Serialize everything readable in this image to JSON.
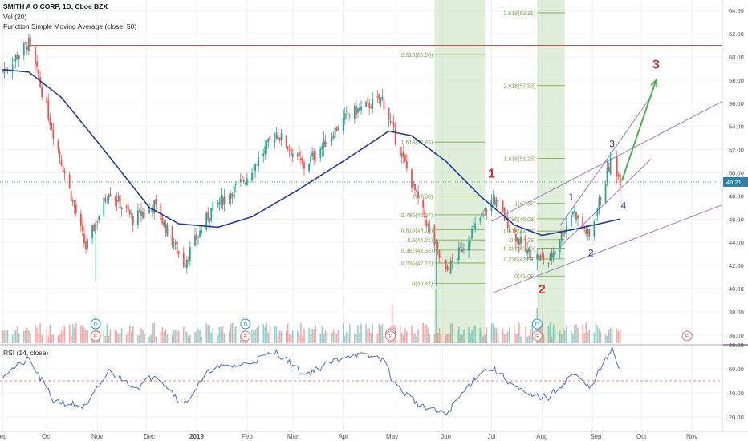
{
  "header": {
    "title": "SMITH A O CORP, 1D, Cboe BZX",
    "vol": "Vol (20)",
    "sma": "Function Simple Moving Average (close, 50)"
  },
  "rsi_header": "RSI (14, close)",
  "price_badge": "49.21",
  "colors": {
    "up": "#26a69a",
    "down": "#ef5350",
    "sma": "#1f3c99",
    "rsi": "#4a6fc9",
    "channel": "#9c7cc5",
    "fib": "#7ba84a",
    "fib_zone": "#b9d9a8",
    "resistance": "#e0463e",
    "wave_blue": "#1f3c99",
    "wave_red": "#d32f2f",
    "arrow": "#4caf50",
    "badge": "#2b7fa8"
  },
  "wave_labels_red": [
    "1",
    "2",
    "3"
  ],
  "wave_labels_blue": [
    "1",
    "2",
    "3",
    "4"
  ],
  "event_markers": [
    {
      "text": "D",
      "color": "#2196f3"
    },
    {
      "text": "E",
      "color": "#e57373"
    },
    {
      "text": "D",
      "color": "#2196f3"
    },
    {
      "text": "E",
      "color": "#e57373"
    },
    {
      "text": "E",
      "color": "#e57373"
    },
    {
      "text": "E",
      "color": "#e57373"
    },
    {
      "text": "D",
      "color": "#2196f3"
    },
    {
      "text": "E",
      "color": "#e57373"
    },
    {
      "text": "E",
      "color": "#e57373"
    }
  ],
  "fib_left": [
    "2.618(60.20)",
    "1.618(52.65)",
    "1(47.98)",
    "0.786(46.37)",
    "0.618(45.10)",
    "0.5(44.21)",
    "0.382(43.33)",
    "0.236(42.22)",
    "0(40.44)"
  ],
  "fib_right": [
    "3.618(63.81)",
    "2.618(57.53)",
    "1.618(51.25)",
    "1(47.37)",
    "0.786(46.03)",
    "0.618(44.97)",
    "0.5(44.23)",
    "0.382(43.49)",
    "0.236(42.57)",
    "0(41.09)"
  ],
  "chart_data": {
    "type": "candlestick",
    "x_labels": [
      "Sep",
      "Oct",
      "Nov",
      "Dec",
      "2019",
      "Feb",
      "Mar",
      "Apr",
      "May",
      "Jun",
      "Jul",
      "Aug",
      "Sep",
      "Oct",
      "Nov"
    ],
    "price_axis": {
      "ticks": [
        "64.00",
        "62.00",
        "60.00",
        "58.00",
        "56.00",
        "54.00",
        "52.00",
        "50.00",
        "48.00",
        "46.00",
        "44.00",
        "42.00",
        "40.00",
        "38.00",
        "36.00"
      ],
      "range": [
        35,
        65
      ]
    },
    "rsi_axis": {
      "ticks": [
        "80.00",
        "60.00",
        "40.00",
        "20.00"
      ],
      "range": [
        12,
        85
      ],
      "midline": 50
    },
    "last_price": 49.21,
    "resistance": 61.0,
    "price_path_anchors": [
      [
        "2018-09-04",
        58.8
      ],
      [
        "2018-09-20",
        61.2
      ],
      [
        "2018-10-03",
        54.5
      ],
      [
        "2018-10-25",
        43.5
      ],
      [
        "2018-11-08",
        48.5
      ],
      [
        "2018-11-23",
        46.0
      ],
      [
        "2018-12-06",
        47.2
      ],
      [
        "2018-12-24",
        42.2
      ],
      [
        "2019-01-10",
        46.8
      ],
      [
        "2019-01-31",
        49.5
      ],
      [
        "2019-02-19",
        53.5
      ],
      [
        "2019-03-08",
        50.5
      ],
      [
        "2019-04-04",
        55.0
      ],
      [
        "2019-04-25",
        56.4
      ],
      [
        "2019-05-03",
        53.0
      ],
      [
        "2019-05-20",
        46.5
      ],
      [
        "2019-06-03",
        41.3
      ],
      [
        "2019-06-24",
        46.0
      ],
      [
        "2019-07-02",
        47.8
      ],
      [
        "2019-07-22",
        43.2
      ],
      [
        "2019-08-05",
        42.3
      ],
      [
        "2019-08-20",
        46.8
      ],
      [
        "2019-08-30",
        44.4
      ],
      [
        "2019-09-13",
        51.5
      ],
      [
        "2019-09-18",
        49.2
      ]
    ],
    "sma50_anchors": [
      [
        "2018-09-04",
        58.9
      ],
      [
        "2018-09-20",
        58.7
      ],
      [
        "2018-10-10",
        56.5
      ],
      [
        "2018-11-05",
        52.0
      ],
      [
        "2018-12-03",
        47.0
      ],
      [
        "2018-12-21",
        45.6
      ],
      [
        "2019-01-14",
        45.3
      ],
      [
        "2019-02-04",
        46.2
      ],
      [
        "2019-03-04",
        48.5
      ],
      [
        "2019-04-01",
        51.0
      ],
      [
        "2019-04-29",
        53.6
      ],
      [
        "2019-05-13",
        53.2
      ],
      [
        "2019-06-03",
        51.0
      ],
      [
        "2019-06-24",
        48.0
      ],
      [
        "2019-07-15",
        45.5
      ],
      [
        "2019-08-01",
        44.6
      ],
      [
        "2019-08-20",
        45.1
      ],
      [
        "2019-09-18",
        46.0
      ]
    ],
    "rsi_anchors": [
      [
        "2018-09-04",
        55
      ],
      [
        "2018-09-20",
        68
      ],
      [
        "2018-10-05",
        34
      ],
      [
        "2018-10-25",
        28
      ],
      [
        "2018-11-08",
        58
      ],
      [
        "2018-11-26",
        44
      ],
      [
        "2018-12-07",
        56
      ],
      [
        "2018-12-24",
        30
      ],
      [
        "2019-01-10",
        60
      ],
      [
        "2019-01-31",
        64
      ],
      [
        "2019-02-19",
        74
      ],
      [
        "2019-03-08",
        55
      ],
      [
        "2019-04-04",
        72
      ],
      [
        "2019-04-25",
        69
      ],
      [
        "2019-05-03",
        46
      ],
      [
        "2019-05-20",
        28
      ],
      [
        "2019-06-03",
        22
      ],
      [
        "2019-06-24",
        58
      ],
      [
        "2019-07-02",
        60
      ],
      [
        "2019-07-22",
        38
      ],
      [
        "2019-08-05",
        36
      ],
      [
        "2019-08-20",
        56
      ],
      [
        "2019-08-30",
        44
      ],
      [
        "2019-09-13",
        76
      ],
      [
        "2019-09-18",
        57
      ]
    ],
    "fib_zones": [
      {
        "from": "2019-05-27",
        "to": "2019-06-27"
      },
      {
        "from": "2019-07-29",
        "to": "2019-08-15"
      }
    ],
    "channel": {
      "lower": [
        [
          "2019-07-01",
          39.6
        ],
        [
          "2019-11-08",
          46.6
        ]
      ],
      "upper": [
        [
          "2019-07-01",
          45.8
        ],
        [
          "2019-11-08",
          55.3
        ]
      ]
    },
    "inner_channel": {
      "lower": [
        [
          "2019-08-12",
          43.6
        ],
        [
          "2019-10-07",
          51.2
        ]
      ],
      "upper": [
        [
          "2019-08-12",
          45.4
        ],
        [
          "2019-10-07",
          56.6
        ]
      ]
    },
    "projection_arrow": [
      [
        "2019-09-19",
        49.3
      ],
      [
        "2019-10-10",
        58.0
      ]
    ]
  }
}
